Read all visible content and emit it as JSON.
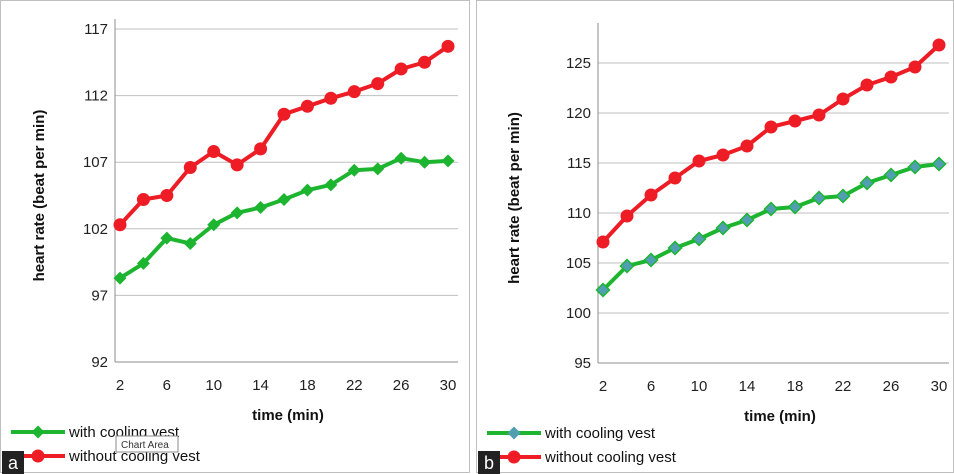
{
  "colors": {
    "with_cooling": "#1db530",
    "with_cooling_marker_b": "#4f9fb0",
    "without_cooling": "#ee1c24",
    "grid": "#bfbfbf",
    "tag_bg": "#222222"
  },
  "tooltip": {
    "text": "Chart Area"
  },
  "chart_data": [
    {
      "panel_label": "a",
      "type": "line",
      "xlabel": "time (min)",
      "ylabel": "heart rate (beat per min)",
      "x": [
        2,
        4,
        6,
        8,
        10,
        12,
        14,
        16,
        18,
        20,
        22,
        24,
        26,
        28,
        30
      ],
      "xticks": [
        2,
        6,
        10,
        14,
        18,
        22,
        26,
        30
      ],
      "yticks": [
        92,
        97,
        102,
        107,
        112,
        117
      ],
      "ylim": [
        92,
        117
      ],
      "grid": true,
      "legend_position": "bottom-left",
      "series": [
        {
          "name": "with cooling vest",
          "marker": "diamond",
          "values": [
            98.3,
            99.4,
            101.3,
            100.9,
            102.3,
            103.2,
            103.6,
            104.2,
            104.9,
            105.3,
            106.4,
            106.5,
            107.3,
            107.0,
            107.1
          ]
        },
        {
          "name": "without cooling vest",
          "marker": "circle",
          "values": [
            102.3,
            104.2,
            104.5,
            106.6,
            107.8,
            106.8,
            108.0,
            110.6,
            111.2,
            111.8,
            112.3,
            112.9,
            114.0,
            114.5,
            115.7
          ]
        }
      ]
    },
    {
      "panel_label": "b",
      "type": "line",
      "xlabel": "time (min)",
      "ylabel": "heart rate (beat per min)",
      "x": [
        2,
        4,
        6,
        8,
        10,
        12,
        14,
        16,
        18,
        20,
        22,
        24,
        26,
        28,
        30
      ],
      "xticks": [
        2,
        6,
        10,
        14,
        18,
        22,
        26,
        30
      ],
      "yticks": [
        95,
        100,
        105,
        110,
        115,
        120,
        125
      ],
      "ylim": [
        95,
        128
      ],
      "grid": true,
      "legend_position": "bottom-left",
      "series": [
        {
          "name": "with cooling vest",
          "marker": "diamond",
          "values": [
            102.3,
            104.7,
            105.3,
            106.5,
            107.4,
            108.5,
            109.3,
            110.4,
            110.6,
            111.5,
            111.7,
            113.0,
            113.8,
            114.6,
            114.9
          ]
        },
        {
          "name": "without cooling vest",
          "marker": "circle",
          "values": [
            107.1,
            109.7,
            111.8,
            113.5,
            115.2,
            115.8,
            116.7,
            118.6,
            119.2,
            119.8,
            121.4,
            122.8,
            123.6,
            124.6,
            126.8
          ]
        }
      ]
    }
  ]
}
